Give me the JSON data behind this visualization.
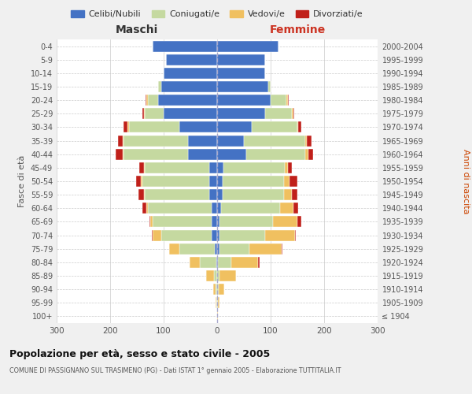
{
  "age_groups": [
    "100+",
    "95-99",
    "90-94",
    "85-89",
    "80-84",
    "75-79",
    "70-74",
    "65-69",
    "60-64",
    "55-59",
    "50-54",
    "45-49",
    "40-44",
    "35-39",
    "30-34",
    "25-29",
    "20-24",
    "15-19",
    "10-14",
    "5-9",
    "0-4"
  ],
  "birth_years": [
    "≤ 1904",
    "1905-1909",
    "1910-1914",
    "1915-1919",
    "1920-1924",
    "1925-1929",
    "1930-1934",
    "1935-1939",
    "1940-1944",
    "1945-1949",
    "1950-1954",
    "1955-1959",
    "1960-1964",
    "1965-1969",
    "1970-1974",
    "1975-1979",
    "1980-1984",
    "1985-1989",
    "1990-1994",
    "1995-1999",
    "2000-2004"
  ],
  "male_celibi": [
    0,
    0,
    0,
    0,
    2,
    5,
    10,
    10,
    10,
    15,
    15,
    15,
    55,
    55,
    70,
    100,
    110,
    105,
    100,
    95,
    120
  ],
  "male_coniugati": [
    0,
    1,
    3,
    6,
    30,
    65,
    95,
    110,
    120,
    120,
    125,
    120,
    120,
    120,
    95,
    35,
    20,
    5,
    0,
    0,
    0
  ],
  "male_vedovi": [
    0,
    2,
    5,
    15,
    20,
    20,
    15,
    5,
    2,
    2,
    2,
    2,
    2,
    2,
    2,
    2,
    2,
    0,
    0,
    0,
    0
  ],
  "male_divorziati": [
    0,
    0,
    0,
    0,
    0,
    0,
    2,
    2,
    8,
    10,
    10,
    8,
    12,
    8,
    8,
    2,
    2,
    0,
    0,
    0,
    0
  ],
  "female_celibi": [
    0,
    0,
    0,
    0,
    2,
    5,
    5,
    5,
    8,
    10,
    10,
    12,
    55,
    50,
    65,
    90,
    100,
    95,
    90,
    90,
    115
  ],
  "female_coniugati": [
    0,
    1,
    3,
    5,
    25,
    55,
    85,
    100,
    110,
    115,
    115,
    115,
    110,
    115,
    85,
    50,
    30,
    5,
    0,
    0,
    0
  ],
  "female_vedovi": [
    1,
    3,
    10,
    30,
    50,
    60,
    55,
    45,
    25,
    15,
    10,
    5,
    5,
    2,
    2,
    2,
    2,
    0,
    0,
    0,
    0
  ],
  "female_divorziati": [
    0,
    0,
    0,
    0,
    2,
    2,
    2,
    8,
    8,
    10,
    15,
    8,
    10,
    10,
    5,
    2,
    2,
    0,
    0,
    0,
    0
  ],
  "colors": {
    "celibi": "#4472c4",
    "coniugati": "#c5d9a0",
    "vedovi": "#f0c060",
    "divorziati": "#c0201a"
  },
  "title": "Popolazione per età, sesso e stato civile - 2005",
  "subtitle": "COMUNE DI PASSIGNANO SUL TRASIMENO (PG) - Dati ISTAT 1° gennaio 2005 - Elaborazione TUTTITALIA.IT",
  "xlabel_left": "Maschi",
  "xlabel_right": "Femmine",
  "ylabel_left": "Fasce di età",
  "ylabel_right": "Anni di nascita",
  "xlim": 300,
  "bg_color": "#f0f0f0",
  "plot_bg": "#ffffff",
  "legend_labels": [
    "Celibi/Nubili",
    "Coniugati/e",
    "Vedovi/e",
    "Divorziati/e"
  ]
}
